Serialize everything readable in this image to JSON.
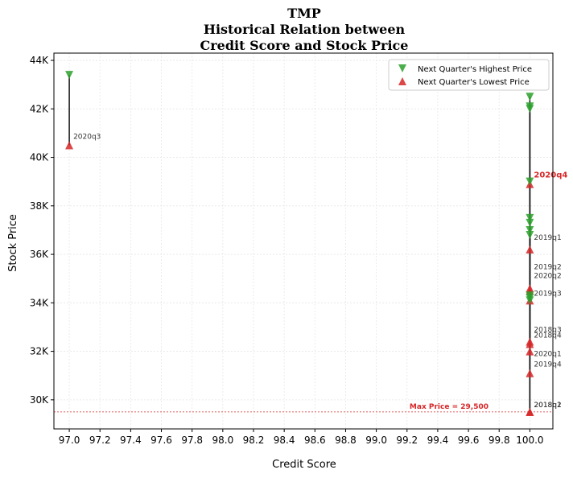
{
  "chart_data": {
    "type": "scatter",
    "title_lines": [
      "TMP",
      "Historical Relation between",
      "Credit Score and Stock Price"
    ],
    "xlabel": "Credit Score",
    "ylabel": "Stock Price",
    "xlim": [
      96.9,
      100.15
    ],
    "ylim": [
      28800,
      44300
    ],
    "x_ticks": [
      97.0,
      97.2,
      97.4,
      97.6,
      97.8,
      98.0,
      98.2,
      98.4,
      98.6,
      98.8,
      99.0,
      99.2,
      99.4,
      99.6,
      99.8,
      100.0
    ],
    "x_tick_labels": [
      "97.0",
      "97.2",
      "97.4",
      "97.6",
      "97.8",
      "98.0",
      "98.2",
      "98.4",
      "98.6",
      "98.8",
      "99.0",
      "99.2",
      "99.4",
      "99.6",
      "99.8",
      "100.0"
    ],
    "y_ticks": [
      30000,
      32000,
      34000,
      36000,
      38000,
      40000,
      42000,
      44000
    ],
    "y_tick_labels": [
      "30K",
      "32K",
      "34K",
      "36K",
      "38K",
      "40K",
      "42K",
      "44K"
    ],
    "grid": true,
    "legend_position": "top-right",
    "series": [
      {
        "name": "Next Quarter's Highest Price",
        "marker": "triangle-down",
        "color": "#2ca02c"
      },
      {
        "name": "Next Quarter's Lowest Price",
        "marker": "triangle-up",
        "color": "#d62728"
      }
    ],
    "points": [
      {
        "label": "2020q3",
        "x": 97.0,
        "high": 43400,
        "low": 40500,
        "highlight": false
      },
      {
        "label": "2020q4",
        "x": 100.0,
        "high": 42500,
        "low": 38900,
        "highlight": true
      },
      {
        "label": "2019q1",
        "x": 100.0,
        "high": 42100,
        "low": 36200,
        "highlight": false
      },
      {
        "label": "2019q2",
        "x": 100.0,
        "high": 42000,
        "low": 34600,
        "highlight": false
      },
      {
        "label": "2020q2",
        "x": 100.0,
        "high": 39000,
        "low": 34500,
        "highlight": false
      },
      {
        "label": "2019q3",
        "x": 100.0,
        "high": 37500,
        "low": 34100,
        "highlight": false
      },
      {
        "label": "2018q3",
        "x": 100.0,
        "high": 37300,
        "low": 32400,
        "highlight": false
      },
      {
        "label": "2018q4",
        "x": 100.0,
        "high": 37000,
        "low": 32300,
        "highlight": false
      },
      {
        "label": "2020q1",
        "x": 100.0,
        "high": 36800,
        "low": 32000,
        "highlight": false
      },
      {
        "label": "2019q4",
        "x": 100.0,
        "high": 34300,
        "low": 31100,
        "highlight": false
      },
      {
        "label": "2018q1",
        "x": 100.0,
        "high": 34200,
        "low": 29500,
        "highlight": false
      },
      {
        "label": "2018q2",
        "x": 100.0,
        "high": 34100,
        "low": 29500,
        "highlight": false
      }
    ],
    "reference_line": {
      "value": 29500,
      "label": "Max Price = 29,500",
      "color": "#d62728"
    }
  }
}
